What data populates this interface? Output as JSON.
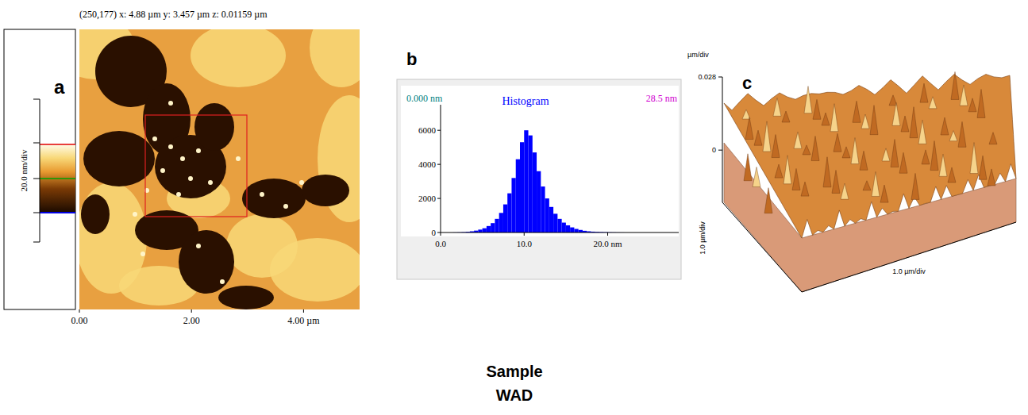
{
  "caption": [
    "Sample",
    "WAD"
  ],
  "chart_data": [
    {
      "type": "image",
      "label": "a",
      "header": "(250,177)  x: 4.88 µm  y: 3.457 µm  z: 0.01159 µm",
      "colorbar_label": "20.0 nm/div",
      "xlim": [
        0,
        5
      ],
      "xticks": [
        {
          "value": 0,
          "label": "0.00"
        },
        {
          "value": 2,
          "label": "2.00"
        },
        {
          "value": 4,
          "label": "4.00 µm"
        }
      ]
    },
    {
      "type": "histogram",
      "label": "b",
      "title": "Histogram",
      "range_labels": [
        "0.000 nm",
        "28.5 nm"
      ],
      "color": "#0000ff",
      "bins": [
        0,
        0.5,
        1,
        1.5,
        2,
        2.5,
        3,
        3.5,
        4,
        4.5,
        5,
        5.5,
        6,
        6.5,
        7,
        7.5,
        8,
        8.5,
        9,
        9.5,
        10,
        10.5,
        11,
        11.5,
        12,
        12.5,
        13,
        13.5,
        14,
        14.5,
        15,
        15.5,
        16,
        16.5,
        17,
        17.5,
        18,
        18.5,
        19,
        19.5,
        20,
        20.5,
        21,
        21.5,
        22,
        22.5,
        23,
        23.5,
        24,
        24.5,
        25,
        25.5,
        26,
        26.5,
        27,
        27.5,
        28,
        28.5
      ],
      "counts": [
        0,
        0,
        0,
        5,
        10,
        20,
        40,
        70,
        110,
        170,
        250,
        380,
        550,
        800,
        1150,
        1650,
        2300,
        3200,
        4300,
        5300,
        6000,
        5700,
        4700,
        3600,
        2700,
        2000,
        1500,
        1100,
        800,
        580,
        420,
        300,
        210,
        150,
        100,
        70,
        50,
        35,
        25,
        18,
        12,
        8,
        5,
        3,
        0,
        0,
        0,
        0,
        0,
        0,
        0,
        0,
        0,
        0,
        0,
        0,
        0
      ],
      "xlim": [
        0,
        28.5
      ],
      "ylim": [
        0,
        7500
      ],
      "xticks": [
        {
          "value": 0,
          "label": "0.0"
        },
        {
          "value": 10,
          "label": "10.0"
        },
        {
          "value": 20,
          "label": "20.0 nm"
        }
      ],
      "yticks": [
        0,
        2000,
        4000,
        6000
      ]
    },
    {
      "type": "surface",
      "label": "c",
      "z_unit": "µm/div",
      "zlim": [
        -0.02,
        0.028
      ],
      "zticks": [
        0,
        0.028
      ],
      "axis_labels": [
        "1.0 µm/div",
        "1.0 µm/div"
      ]
    }
  ]
}
